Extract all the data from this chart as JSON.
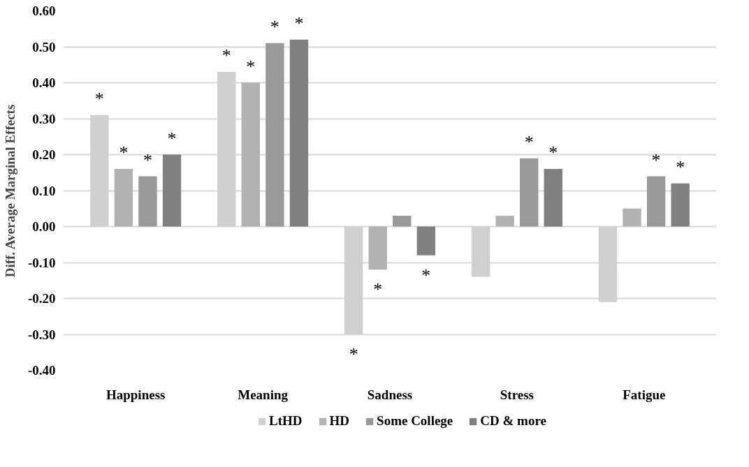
{
  "chart_data": {
    "type": "bar",
    "ylabel": "Diff. Average Marginal Effects",
    "categories": [
      "Happiness",
      "Meaning",
      "Sadness",
      "Stress",
      "Fatigue"
    ],
    "series": [
      {
        "name": "LtHD",
        "color": "#d0d0d0",
        "values": [
          0.31,
          0.43,
          -0.3,
          -0.14,
          -0.21
        ],
        "value_labels": [
          "*",
          "*",
          "*",
          null,
          null
        ]
      },
      {
        "name": "HD",
        "color": "#b2b2b2",
        "values": [
          0.16,
          0.4,
          -0.12,
          0.03,
          0.05
        ],
        "value_labels": [
          "*",
          "*",
          "*",
          null,
          null
        ]
      },
      {
        "name": "Some College",
        "color": "#999999",
        "values": [
          0.14,
          0.51,
          0.03,
          0.19,
          0.14
        ],
        "value_labels": [
          "*",
          "*",
          null,
          "*",
          "*"
        ]
      },
      {
        "name": "CD & more",
        "color": "#808080",
        "values": [
          0.2,
          0.52,
          -0.08,
          0.16,
          0.12
        ],
        "value_labels": [
          "*",
          "*",
          "*",
          "*",
          "*"
        ]
      }
    ],
    "ylim": [
      -0.4,
      0.6
    ],
    "yticks": [
      {
        "value": -0.4,
        "label": "-0.40"
      },
      {
        "value": -0.3,
        "label": "-0.30"
      },
      {
        "value": -0.2,
        "label": "-0.20"
      },
      {
        "value": -0.1,
        "label": "-0.10"
      },
      {
        "value": 0,
        "label": "0.00"
      },
      {
        "value": 0.1,
        "label": "0.10"
      },
      {
        "value": 0.2,
        "label": "0.20"
      },
      {
        "value": 0.3,
        "label": "0.30"
      },
      {
        "value": 0.4,
        "label": "0.40"
      },
      {
        "value": 0.5,
        "label": "0.50"
      },
      {
        "value": 0.6,
        "label": "0.60"
      }
    ],
    "grid": "y",
    "legend": "bottom"
  }
}
